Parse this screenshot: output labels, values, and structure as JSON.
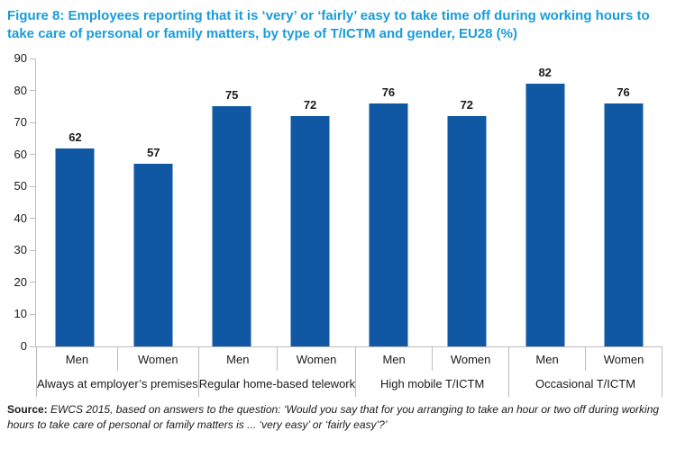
{
  "figure": {
    "title": "Figure 8: Employees reporting that it is ‘very’ or ‘fairly’ easy to take time off during working hours to take care of personal or family matters, by type of T/ICTM and gender, EU28 (%)",
    "source_label": "Source:",
    "source_text": " EWCS 2015, based on answers to the question: ‘Would you say that for you arranging to take an hour or two off during working hours to take care of personal or family matters is ... ‘very easy’ or ‘fairly easy’?’"
  },
  "colors": {
    "title": "#1a9cd8",
    "bar": "#1057a4",
    "axis_line": "#bcbcbc",
    "text": "#1a1a1a"
  },
  "chart_data": {
    "type": "bar",
    "title": "Figure 8: Employees reporting that it is ‘very’ or ‘fairly’ easy to take time off during working hours to take care of personal or family matters, by type of T/ICTM and gender, EU28 (%)",
    "xlabel": "",
    "ylabel": "",
    "ylim": [
      0,
      90
    ],
    "yticks": [
      0,
      10,
      20,
      30,
      40,
      50,
      60,
      70,
      80,
      90
    ],
    "grid": false,
    "legend": "none",
    "bar_color": "#1057a4",
    "value_labels": true,
    "groups": [
      {
        "label": "Always at employer’s premises",
        "bars": [
          {
            "category": "Men",
            "value": 62
          },
          {
            "category": "Women",
            "value": 57
          }
        ]
      },
      {
        "label": "Regular home-based telework",
        "bars": [
          {
            "category": "Men",
            "value": 75
          },
          {
            "category": "Women",
            "value": 72
          }
        ]
      },
      {
        "label": "High mobile T/ICTM",
        "bars": [
          {
            "category": "Men",
            "value": 76
          },
          {
            "category": "Women",
            "value": 72
          }
        ]
      },
      {
        "label": "Occasional T/ICTM",
        "bars": [
          {
            "category": "Men",
            "value": 82
          },
          {
            "category": "Women",
            "value": 76
          }
        ]
      }
    ]
  }
}
